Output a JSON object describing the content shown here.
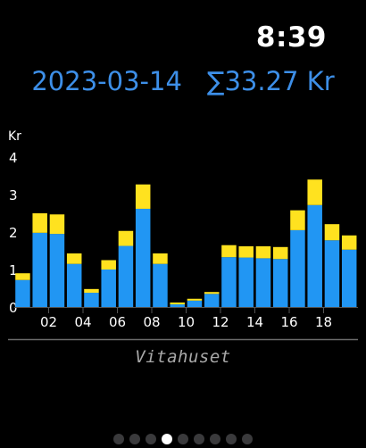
{
  "status": {
    "time": "8:39"
  },
  "header": {
    "date": "2023-03-14",
    "total": "∑33.27 Kr"
  },
  "chart_data": {
    "type": "bar",
    "stacked": true,
    "unit_label": "Kr",
    "ylim": [
      0,
      4
    ],
    "y_ticks": [
      "0",
      "1",
      "2",
      "3",
      "4"
    ],
    "x_tick_labels": [
      "02",
      "04",
      "06",
      "08",
      "10",
      "12",
      "14",
      "16",
      "18"
    ],
    "x_tick_hours": [
      2,
      4,
      6,
      8,
      10,
      12,
      14,
      16,
      18
    ],
    "hours": [
      0,
      1,
      2,
      3,
      4,
      5,
      6,
      7,
      8,
      9,
      10,
      11,
      12,
      13,
      14,
      15,
      16,
      17,
      18,
      19
    ],
    "series": [
      {
        "color": "#2196f3",
        "values": [
          0.72,
          1.98,
          1.95,
          1.15,
          0.38,
          1.0,
          1.63,
          2.62,
          1.15,
          0.07,
          0.17,
          0.35,
          1.33,
          1.32,
          1.3,
          1.28,
          2.05,
          2.72,
          1.78,
          1.53
        ]
      },
      {
        "color": "#ffe21f",
        "values": [
          0.18,
          0.52,
          0.52,
          0.28,
          0.1,
          0.25,
          0.4,
          0.65,
          0.28,
          0.05,
          0.05,
          0.05,
          0.32,
          0.3,
          0.32,
          0.32,
          0.53,
          0.68,
          0.43,
          0.38
        ]
      }
    ]
  },
  "location": {
    "name": "Vitahuset"
  },
  "pager": {
    "count": 9,
    "active": 3
  },
  "colors": {
    "accent": "#3d8fe8",
    "axis": "#555555",
    "text": "#ffffff"
  }
}
